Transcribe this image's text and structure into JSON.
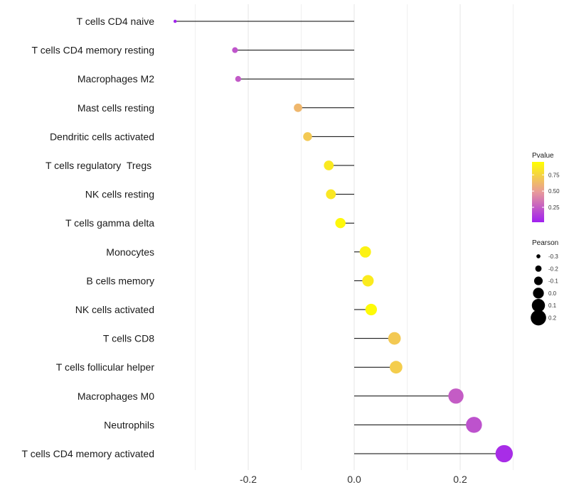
{
  "chart_data": {
    "type": "lollipop",
    "title": "",
    "xlabel": "",
    "ylabel": "",
    "xlim": [
      -0.34,
      0.3
    ],
    "x_ticks": [
      -0.2,
      0.0,
      0.2
    ],
    "x_tick_labels": [
      "-0.2",
      "0.0",
      "0.2"
    ],
    "grid": true,
    "categories": [
      "T cells CD4 naive",
      "T cells CD4 memory resting",
      "Macrophages M2",
      "Mast cells resting",
      "Dendritic cells activated",
      "T cells regulatory  Tregs ",
      "NK cells resting",
      "T cells gamma delta",
      "Monocytes",
      "B cells memory",
      "NK cells activated",
      "T cells CD8",
      "T cells follicular helper",
      "Macrophages M0",
      "Neutrophils",
      "T cells CD4 memory activated"
    ],
    "pearson": [
      -0.338,
      -0.225,
      -0.219,
      -0.106,
      -0.088,
      -0.048,
      -0.044,
      -0.026,
      0.021,
      0.026,
      0.032,
      0.076,
      0.079,
      0.192,
      0.226,
      0.283
    ],
    "pvalue": [
      0.03,
      0.22,
      0.24,
      0.62,
      0.7,
      0.85,
      0.84,
      0.92,
      0.89,
      0.86,
      0.93,
      0.7,
      0.72,
      0.25,
      0.21,
      0.07
    ],
    "legend_pvalue": {
      "title": "Pvalue",
      "ticks": [
        0.25,
        0.5,
        0.75
      ],
      "tick_labels": [
        "0.25",
        "0.50",
        "0.75"
      ],
      "range": [
        0.02,
        0.95
      ],
      "color_low": "#a020f0",
      "color_mid": "#e89a9a",
      "color_high": "#ffff00"
    },
    "legend_pearson": {
      "title": "Pearson",
      "values": [
        -0.3,
        -0.2,
        -0.1,
        0.0,
        0.1,
        0.2
      ],
      "labels": [
        "-0.3",
        "-0.2",
        "-0.1",
        "0.0",
        "0.1",
        "0.2"
      ]
    },
    "legend_position": "right"
  }
}
